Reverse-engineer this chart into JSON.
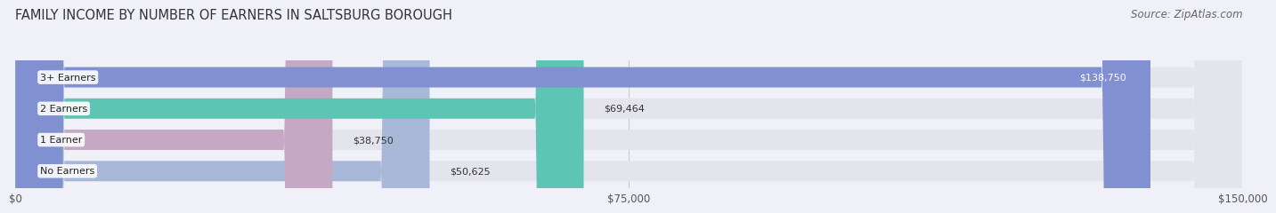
{
  "title": "FAMILY INCOME BY NUMBER OF EARNERS IN SALTSBURG BOROUGH",
  "source": "Source: ZipAtlas.com",
  "categories": [
    "No Earners",
    "1 Earner",
    "2 Earners",
    "3+ Earners"
  ],
  "values": [
    50625,
    38750,
    69464,
    138750
  ],
  "bar_colors": [
    "#a8b8d8",
    "#c4a8c4",
    "#5ec4b4",
    "#8090d0"
  ],
  "value_labels": [
    "$50,625",
    "$38,750",
    "$69,464",
    "$138,750"
  ],
  "label_inside": [
    false,
    false,
    false,
    true
  ],
  "xlim": [
    0,
    150000
  ],
  "xticks": [
    0,
    75000,
    150000
  ],
  "xticklabels": [
    "$0",
    "$75,000",
    "$150,000"
  ],
  "bg_color": "#f0f0f8",
  "bar_bg_color": "#e4e4ec",
  "title_fontsize": 10.5,
  "source_fontsize": 8.5,
  "bar_height": 0.65,
  "figsize": [
    14.06,
    2.33
  ]
}
